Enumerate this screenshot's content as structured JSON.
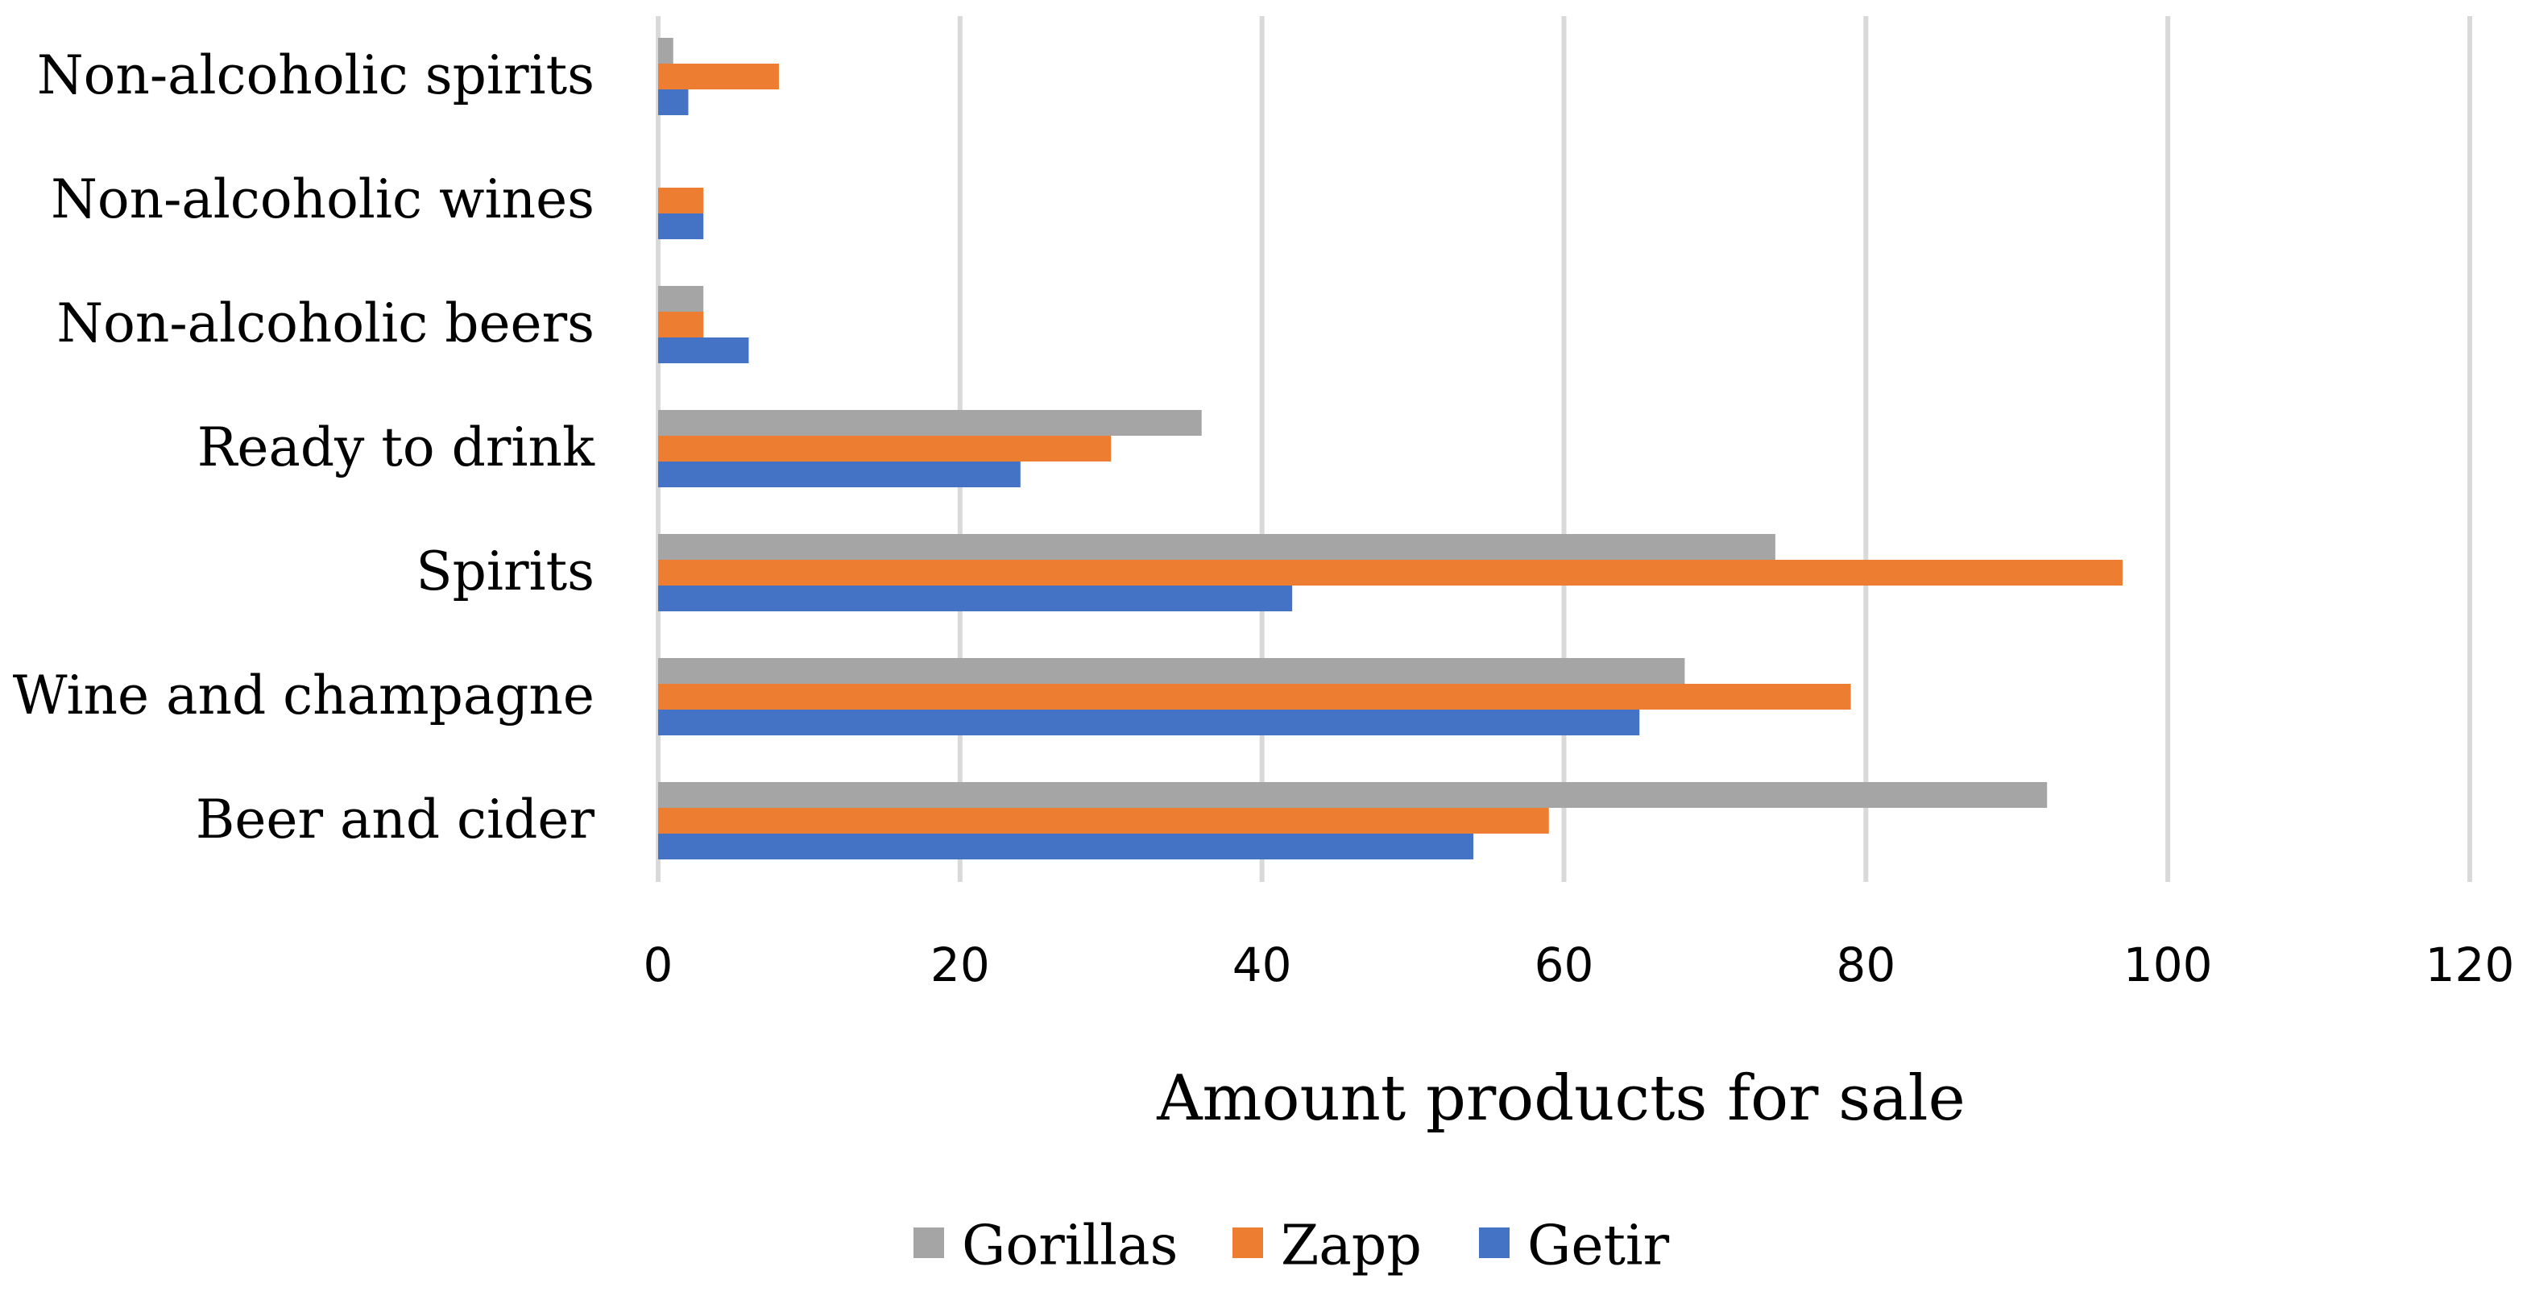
{
  "chart_data": {
    "type": "bar",
    "orientation": "horizontal",
    "title": "",
    "xlabel": "Amount products for sale",
    "ylabel": "",
    "xlim": [
      0,
      120
    ],
    "xticks": [
      "0",
      "20",
      "40",
      "60",
      "80",
      "100",
      "120"
    ],
    "grid": true,
    "legend_position": "bottom",
    "categories": [
      "Non-alcoholic spirits",
      "Non-alcoholic wines",
      "Non-alcoholic beers",
      "Ready to drink",
      "Spirits",
      "Wine and champagne",
      "Beer and cider"
    ],
    "series": [
      {
        "name": "Gorillas",
        "color": "#a5a5a5",
        "values": [
          1,
          0,
          3,
          36,
          74,
          68,
          92
        ]
      },
      {
        "name": "Zapp",
        "color": "#ed7d31",
        "values": [
          8,
          3,
          3,
          30,
          97,
          79,
          59
        ]
      },
      {
        "name": "Getir",
        "color": "#4472c4",
        "values": [
          2,
          3,
          6,
          24,
          42,
          65,
          54
        ]
      }
    ]
  }
}
